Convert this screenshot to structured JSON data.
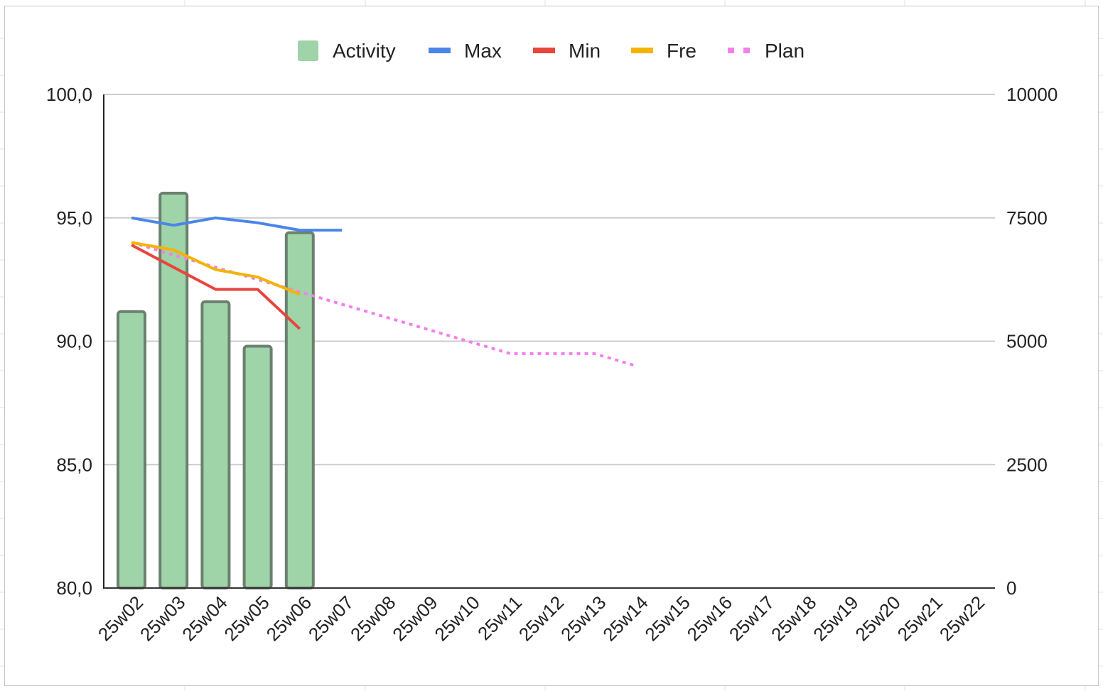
{
  "chart_data": {
    "type": "bar",
    "title": "",
    "xlabel": "",
    "ylabel": "",
    "legend_position": "top",
    "grid": true,
    "categories": [
      "25w02",
      "25w03",
      "25w04",
      "25w05",
      "25w06",
      "25w07",
      "25w08",
      "25w09",
      "25w10",
      "25w11",
      "25w12",
      "25w13",
      "25w14",
      "25w15",
      "25w16",
      "25w17",
      "25w18",
      "25w19",
      "25w20",
      "25w21",
      "25w22"
    ],
    "y_left": {
      "ylim": [
        80,
        100
      ],
      "ticks": [
        "80,0",
        "85,0",
        "90,0",
        "95,0",
        "100,0"
      ]
    },
    "y_right": {
      "ylim": [
        0,
        10000
      ],
      "ticks": [
        "0",
        "2500",
        "5000",
        "7500",
        "10000"
      ]
    },
    "series": [
      {
        "name": "Activity",
        "type": "bar",
        "axis": "right",
        "color": "#9fd3a8",
        "values": [
          5600,
          8000,
          5800,
          4900,
          7200,
          null,
          null,
          null,
          null,
          null,
          null,
          null,
          null,
          null,
          null,
          null,
          null,
          null,
          null,
          null,
          null
        ]
      },
      {
        "name": "Max",
        "type": "line",
        "axis": "left",
        "color": "#4a86e8",
        "dash": "solid",
        "values": [
          95.0,
          94.7,
          95.0,
          94.8,
          94.5,
          94.5,
          null,
          null,
          null,
          null,
          null,
          null,
          null,
          null,
          null,
          null,
          null,
          null,
          null,
          null,
          null
        ]
      },
      {
        "name": "Min",
        "type": "line",
        "axis": "left",
        "color": "#e8453c",
        "dash": "solid",
        "values": [
          93.9,
          93.0,
          92.1,
          92.1,
          90.5,
          null,
          null,
          null,
          null,
          null,
          null,
          null,
          null,
          null,
          null,
          null,
          null,
          null,
          null,
          null,
          null
        ]
      },
      {
        "name": "Fre",
        "type": "line",
        "axis": "left",
        "color": "#f4b400",
        "dash": "solid",
        "values": [
          94.0,
          93.7,
          92.9,
          92.6,
          91.9,
          null,
          null,
          null,
          null,
          null,
          null,
          null,
          null,
          null,
          null,
          null,
          null,
          null,
          null,
          null,
          null
        ]
      },
      {
        "name": "Plan",
        "type": "line",
        "axis": "left",
        "color": "#f47ef0",
        "dash": "dotted",
        "values": [
          94.0,
          93.5,
          93.0,
          92.5,
          92.0,
          91.5,
          91.0,
          90.5,
          90.0,
          89.5,
          89.5,
          89.5,
          89.0,
          null,
          null,
          null,
          null,
          null,
          null,
          null,
          null
        ]
      }
    ]
  }
}
